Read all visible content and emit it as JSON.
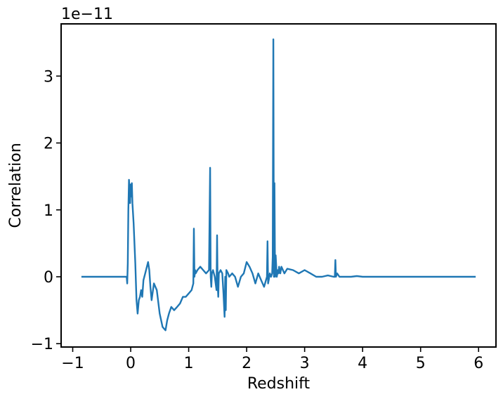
{
  "chart_data": {
    "type": "line",
    "title": "",
    "xlabel": "Redshift",
    "ylabel": "Correlation",
    "y_offset_label": "1e−11",
    "xlim": [
      -1.2,
      6.3
    ],
    "ylim": [
      -1.05,
      3.78
    ],
    "x_ticks": [
      -1,
      0,
      1,
      2,
      3,
      4,
      5,
      6
    ],
    "x_tick_labels": [
      "−1",
      "0",
      "1",
      "2",
      "3",
      "4",
      "5",
      "6"
    ],
    "y_ticks": [
      -1,
      0,
      1,
      2,
      3
    ],
    "y_tick_labels": [
      "−1",
      "0",
      "1",
      "2",
      "3"
    ],
    "y_unit_multiplier": 1e-11,
    "grid": false,
    "legend": "none",
    "series": [
      {
        "color": "#1f77b4",
        "x": [
          -0.85,
          -0.07,
          -0.06,
          -0.05,
          -0.04,
          -0.03,
          -0.02,
          -0.01,
          0.0,
          0.01,
          0.02,
          0.03,
          0.05,
          0.08,
          0.1,
          0.12,
          0.14,
          0.16,
          0.18,
          0.2,
          0.22,
          0.25,
          0.28,
          0.3,
          0.32,
          0.34,
          0.36,
          0.4,
          0.45,
          0.5,
          0.55,
          0.6,
          0.63,
          0.66,
          0.7,
          0.75,
          0.8,
          0.85,
          0.9,
          0.95,
          1.0,
          1.05,
          1.08,
          1.09,
          1.1,
          1.11,
          1.12,
          1.15,
          1.2,
          1.25,
          1.3,
          1.35,
          1.37,
          1.38,
          1.39,
          1.4,
          1.42,
          1.45,
          1.48,
          1.49,
          1.5,
          1.51,
          1.52,
          1.55,
          1.58,
          1.6,
          1.62,
          1.63,
          1.64,
          1.65,
          1.68,
          1.7,
          1.75,
          1.8,
          1.85,
          1.9,
          1.95,
          2.0,
          2.05,
          2.1,
          2.15,
          2.2,
          2.25,
          2.3,
          2.35,
          2.36,
          2.37,
          2.38,
          2.4,
          2.42,
          2.44,
          2.45,
          2.46,
          2.47,
          2.48,
          2.49,
          2.5,
          2.52,
          2.54,
          2.55,
          2.56,
          2.58,
          2.6,
          2.65,
          2.7,
          2.8,
          2.9,
          3.0,
          3.1,
          3.2,
          3.3,
          3.4,
          3.5,
          3.52,
          3.53,
          3.54,
          3.56,
          3.6,
          3.7,
          3.8,
          3.9,
          4.0,
          4.5,
          5.0,
          5.5,
          5.95
        ],
        "y": [
          0.0,
          0.0,
          -0.1,
          0.2,
          1.0,
          1.45,
          1.3,
          1.1,
          1.38,
          1.2,
          1.4,
          1.1,
          0.8,
          0.2,
          -0.35,
          -0.55,
          -0.35,
          -0.3,
          -0.2,
          -0.3,
          -0.05,
          0.05,
          0.15,
          0.22,
          0.1,
          -0.15,
          -0.35,
          -0.1,
          -0.2,
          -0.55,
          -0.75,
          -0.8,
          -0.65,
          -0.55,
          -0.45,
          -0.5,
          -0.45,
          -0.4,
          -0.3,
          -0.3,
          -0.25,
          -0.2,
          -0.1,
          0.72,
          0.0,
          0.1,
          0.05,
          0.1,
          0.15,
          0.1,
          0.05,
          0.1,
          1.63,
          0.0,
          -0.15,
          0.05,
          0.1,
          0.0,
          -0.2,
          0.62,
          -0.1,
          -0.3,
          0.05,
          0.1,
          0.05,
          -0.25,
          -0.6,
          0.0,
          -0.5,
          0.1,
          0.05,
          0.0,
          0.05,
          0.0,
          -0.15,
          0.0,
          0.05,
          0.22,
          0.15,
          0.05,
          -0.1,
          0.05,
          -0.05,
          -0.15,
          0.0,
          0.53,
          -0.1,
          -0.05,
          0.05,
          0.0,
          0.05,
          0.3,
          3.55,
          0.0,
          1.4,
          0.0,
          0.32,
          0.0,
          0.1,
          0.05,
          0.15,
          0.05,
          0.15,
          0.05,
          0.12,
          0.1,
          0.05,
          0.1,
          0.05,
          0.0,
          0.0,
          0.02,
          0.0,
          0.0,
          0.25,
          0.0,
          0.05,
          0.0,
          0.0,
          0.0,
          0.01,
          0.0,
          0.0,
          0.0,
          0.0,
          0.0
        ]
      }
    ]
  }
}
